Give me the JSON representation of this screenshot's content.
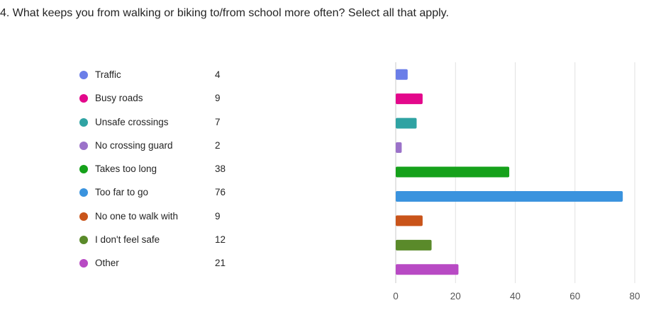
{
  "question": {
    "title": "4. What keeps you from walking or biking to/from school more often? Select all that apply."
  },
  "chart_data": {
    "type": "bar",
    "orientation": "horizontal",
    "categories": [
      "Traffic",
      "Busy roads",
      "Unsafe crossings",
      "No crossing guard",
      "Takes too long",
      "Too far to go",
      "No one to walk with",
      "I don't feel safe",
      "Other"
    ],
    "values": [
      4,
      9,
      7,
      2,
      38,
      76,
      9,
      12,
      21
    ],
    "colors": [
      "#6b7ee8",
      "#e3088b",
      "#2fa3a3",
      "#9b72c9",
      "#15a11a",
      "#3a93de",
      "#c9541a",
      "#5a8a2a",
      "#b84ac4"
    ],
    "xlim": [
      0,
      80
    ],
    "xticks": [
      0,
      20,
      40,
      60,
      80
    ],
    "grid": true,
    "legend_position": "left"
  }
}
